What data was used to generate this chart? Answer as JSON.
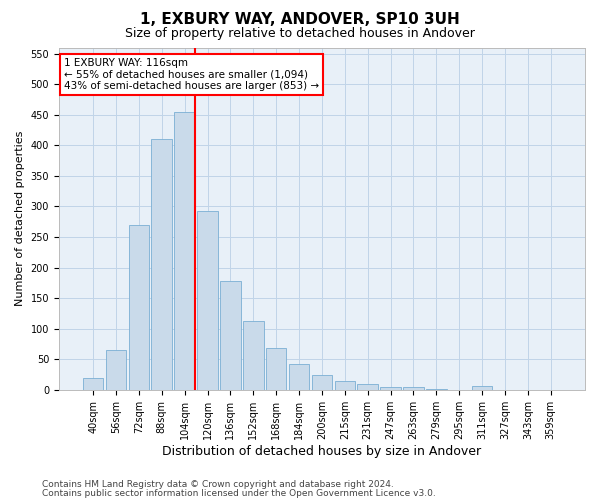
{
  "title1": "1, EXBURY WAY, ANDOVER, SP10 3UH",
  "title2": "Size of property relative to detached houses in Andover",
  "xlabel": "Distribution of detached houses by size in Andover",
  "ylabel": "Number of detached properties",
  "bar_labels": [
    "40sqm",
    "56sqm",
    "72sqm",
    "88sqm",
    "104sqm",
    "120sqm",
    "136sqm",
    "152sqm",
    "168sqm",
    "184sqm",
    "200sqm",
    "215sqm",
    "231sqm",
    "247sqm",
    "263sqm",
    "279sqm",
    "295sqm",
    "311sqm",
    "327sqm",
    "343sqm",
    "359sqm"
  ],
  "bar_values": [
    20,
    65,
    270,
    410,
    455,
    293,
    178,
    113,
    68,
    43,
    24,
    14,
    10,
    5,
    4,
    2,
    0,
    7,
    0,
    0,
    0
  ],
  "bar_color": "#c9daea",
  "bar_edge_color": "#7aafd4",
  "vline_color": "red",
  "annotation_text": "1 EXBURY WAY: 116sqm\n← 55% of detached houses are smaller (1,094)\n43% of semi-detached houses are larger (853) →",
  "annotation_box_color": "white",
  "annotation_box_edge": "red",
  "ylim": [
    0,
    560
  ],
  "yticks": [
    0,
    50,
    100,
    150,
    200,
    250,
    300,
    350,
    400,
    450,
    500,
    550
  ],
  "grid_color": "#c0d4e8",
  "background_color": "#e8f0f8",
  "footer1": "Contains HM Land Registry data © Crown copyright and database right 2024.",
  "footer2": "Contains public sector information licensed under the Open Government Licence v3.0.",
  "title1_fontsize": 11,
  "title2_fontsize": 9,
  "xlabel_fontsize": 9,
  "ylabel_fontsize": 8,
  "tick_fontsize": 7,
  "annotation_fontsize": 7.5,
  "footer_fontsize": 6.5
}
